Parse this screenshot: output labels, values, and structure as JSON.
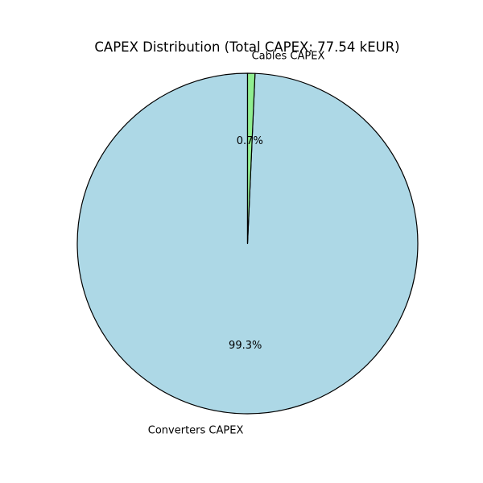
{
  "chart_data": {
    "type": "pie",
    "title": "CAPEX Distribution (Total CAPEX: 77.54 kEUR)",
    "slices": [
      {
        "label": "Converters CAPEX",
        "percent_label": "99.3%",
        "value": 99.3,
        "color": "#add8e6"
      },
      {
        "label": "Cables CAPEX",
        "percent_label": "0.7%",
        "value": 0.7,
        "color": "#90ee90"
      }
    ],
    "start_angle_deg": 90,
    "counterclockwise": true,
    "edge_color": "#000000",
    "legend": false
  }
}
